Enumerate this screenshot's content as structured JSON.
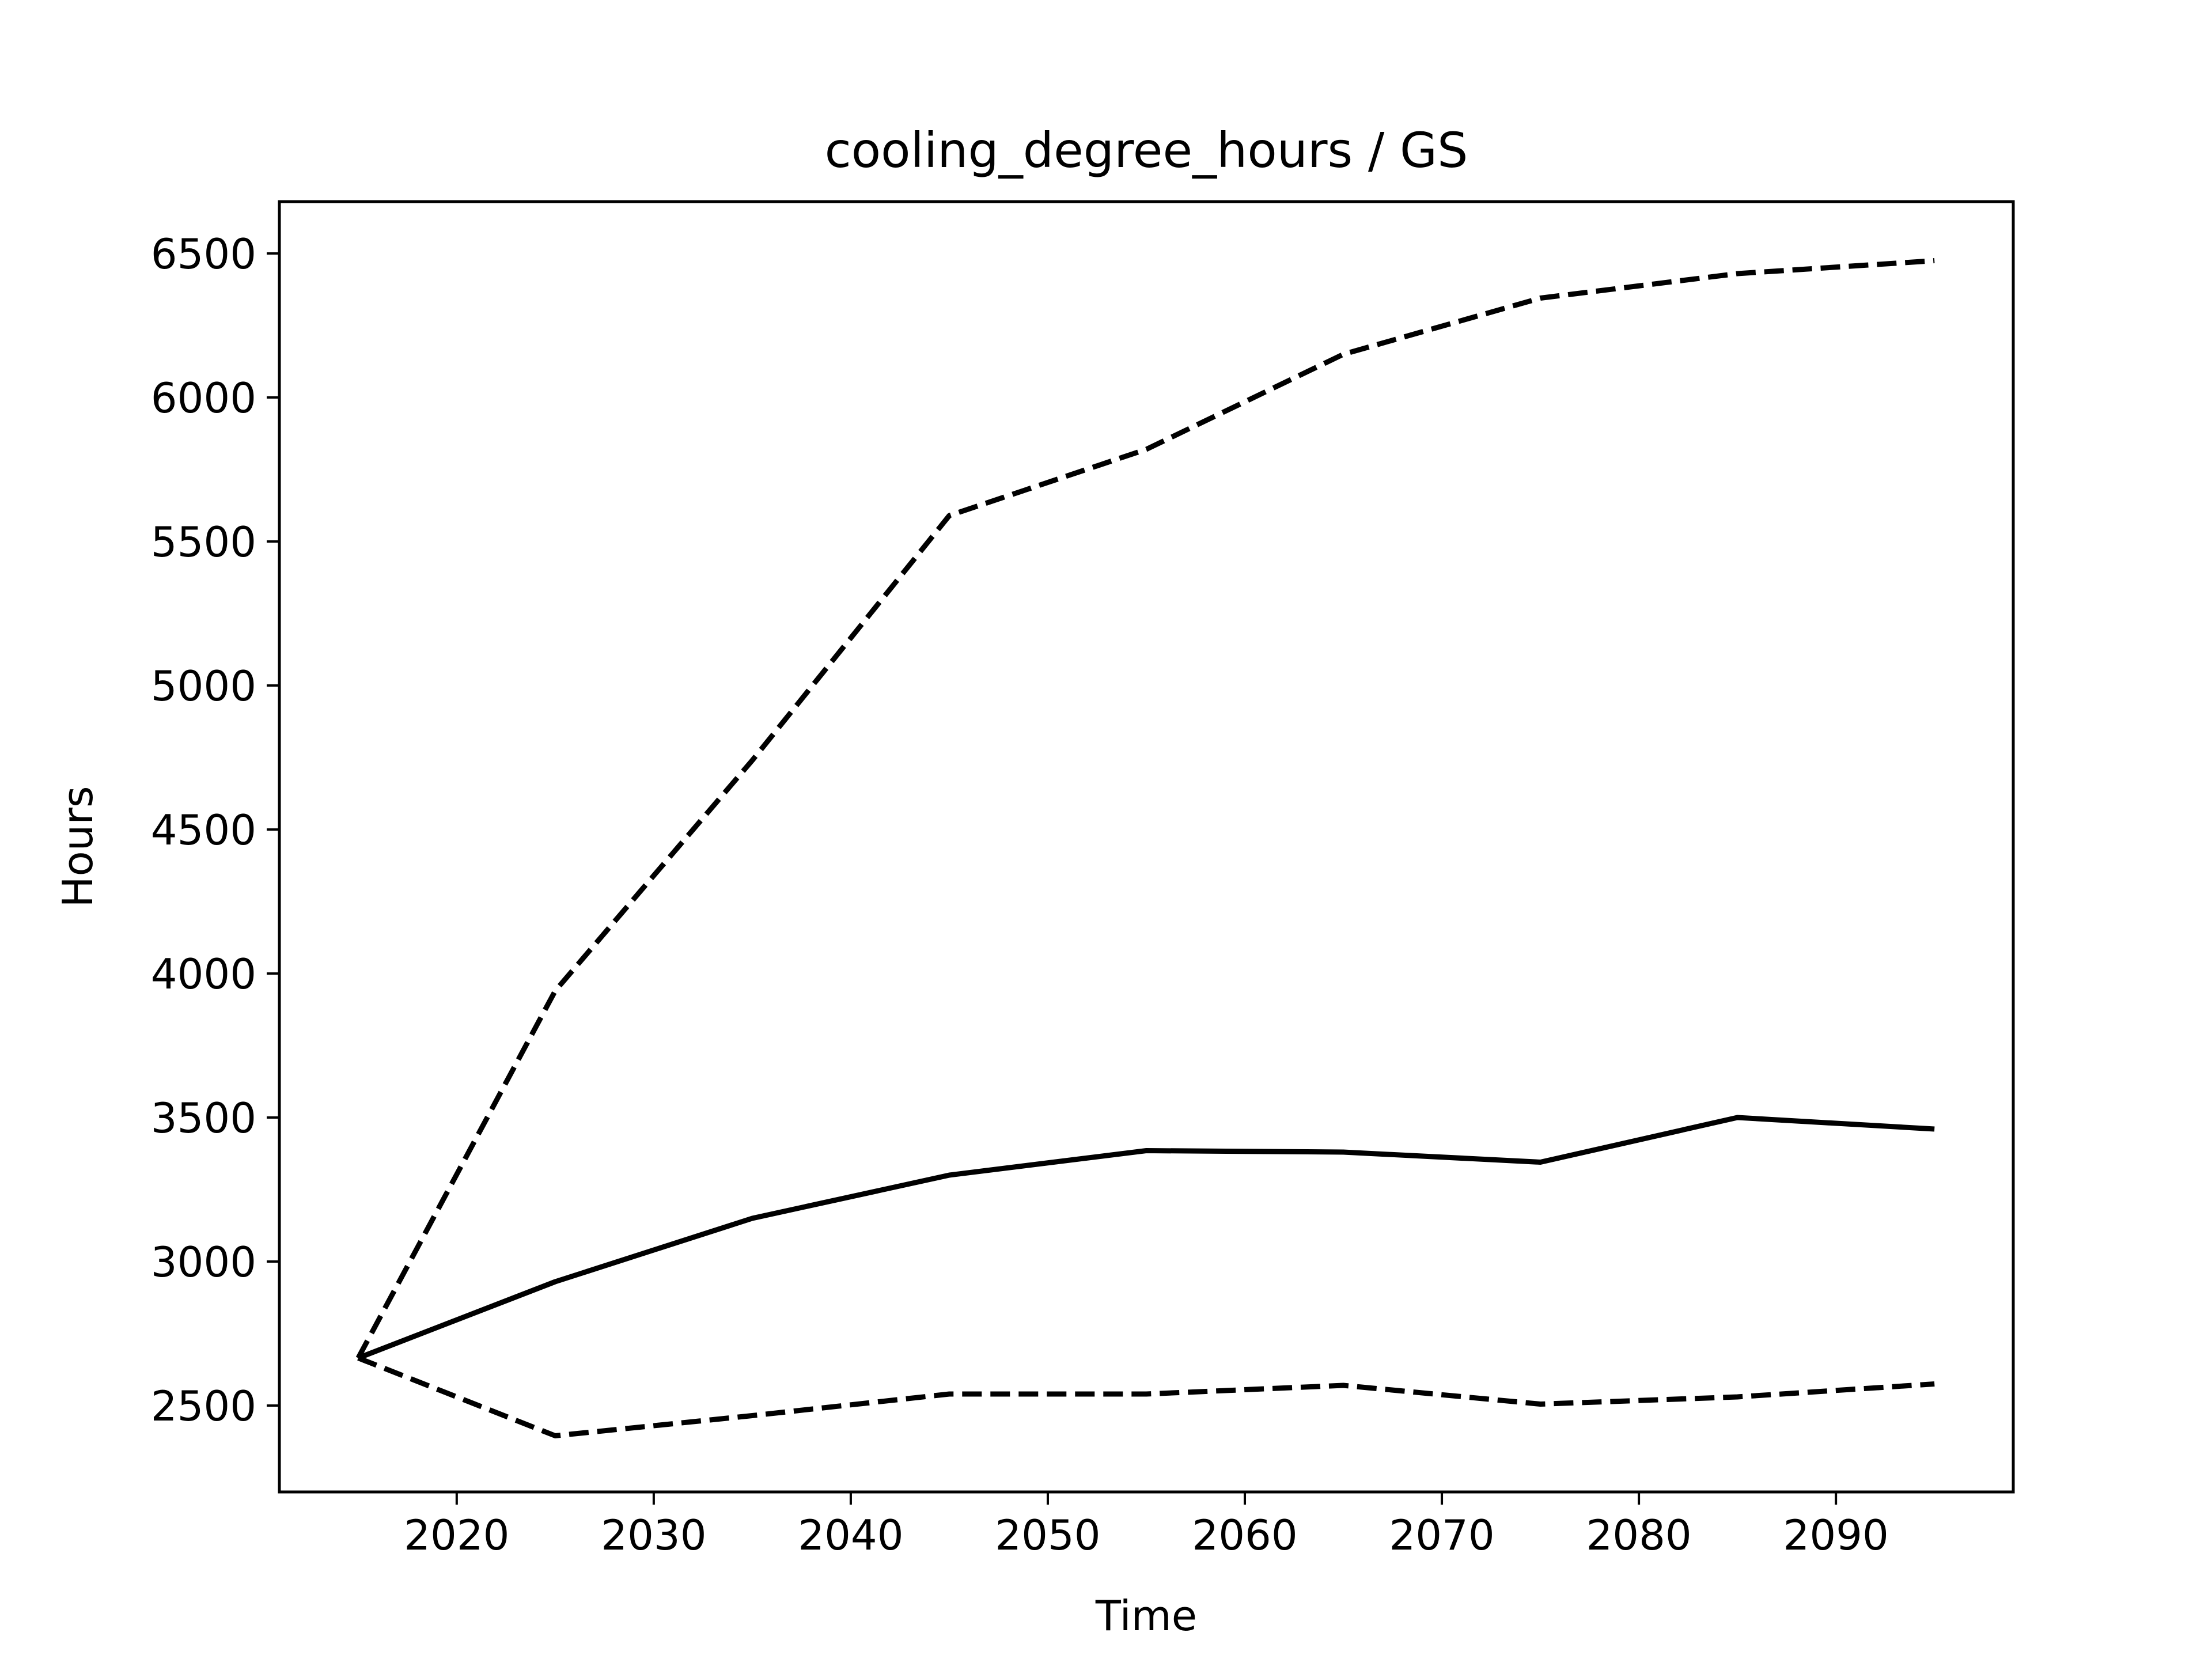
{
  "chart_data": {
    "type": "line",
    "title": "cooling_degree_hours / GS",
    "xlabel": "Time",
    "ylabel": "Hours",
    "xlim": [
      2011,
      2099
    ],
    "ylim": [
      2200,
      6680
    ],
    "x_ticks": [
      2020,
      2030,
      2040,
      2050,
      2060,
      2070,
      2080,
      2090
    ],
    "y_ticks": [
      2500,
      3000,
      3500,
      4000,
      4500,
      5000,
      5500,
      6000,
      6500
    ],
    "grid": false,
    "legend": "none",
    "x": [
      2015,
      2025,
      2035,
      2045,
      2055,
      2065,
      2075,
      2085,
      2095
    ],
    "series": [
      {
        "style": "solid",
        "color": "#000000",
        "values": [
          2665,
          2930,
          3150,
          3300,
          3385,
          3380,
          3345,
          3500,
          3460
        ]
      },
      {
        "style": "dashed",
        "color": "#000000",
        "values": [
          2665,
          3940,
          4740,
          5590,
          5820,
          6150,
          6345,
          6430,
          6475
        ]
      },
      {
        "style": "dashed",
        "color": "#000000",
        "values": [
          2665,
          2395,
          2465,
          2540,
          2540,
          2570,
          2505,
          2530,
          2575
        ]
      }
    ]
  }
}
